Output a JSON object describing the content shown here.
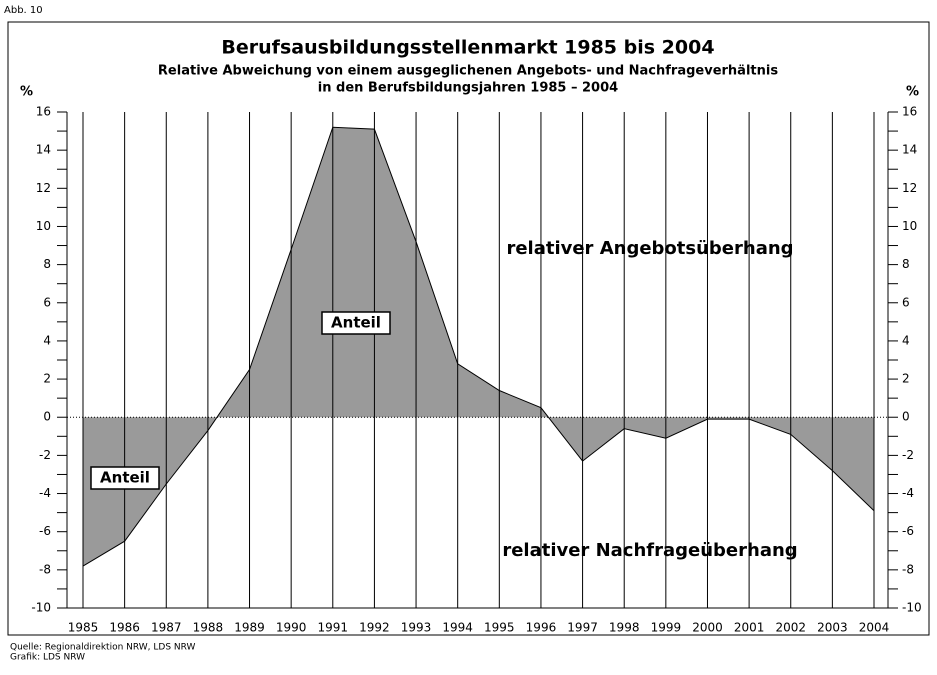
{
  "figure_label": "Abb. 10",
  "chart_data": {
    "type": "area",
    "title": "Berufsausbildungsstellenmarkt 1985 bis 2004",
    "subtitle": [
      "Relative Abweichung von einem ausgeglichenen Angebots- und Nachfrageverhältnis",
      "in den Berufsbildungsjahren 1985 – 2004"
    ],
    "y_label": "%",
    "y2_label": "%",
    "categories": [
      "1985",
      "1986",
      "1987",
      "1988",
      "1989",
      "1990",
      "1991",
      "1992",
      "1993",
      "1994",
      "1995",
      "1996",
      "1997",
      "1998",
      "1999",
      "2000",
      "2001",
      "2002",
      "2003",
      "2004"
    ],
    "values": [
      -7.8,
      -6.5,
      -3.5,
      -0.7,
      2.5,
      8.8,
      15.2,
      15.1,
      9.2,
      2.8,
      1.4,
      0.5,
      -2.3,
      -0.6,
      -1.1,
      -0.1,
      -0.1,
      -0.9,
      -2.8,
      -4.9
    ],
    "color": "#9a9a9a",
    "ylim": [
      -10,
      16
    ],
    "yticks": [
      -10,
      -8,
      -6,
      -4,
      -2,
      0,
      2,
      4,
      6,
      8,
      10,
      12,
      14,
      16
    ],
    "yticks_minor": [
      -9,
      -7,
      -5,
      -3,
      -1,
      1,
      3,
      5,
      7,
      9,
      11,
      13,
      15
    ],
    "grid": true,
    "annotations": [
      "relativer Angebotsüberhang",
      "relativer Nachfrageüberhang",
      "Anteil",
      "Anteil"
    ]
  },
  "footer": [
    "Quelle: Regionaldirektion NRW, LDS NRW",
    "Grafik: LDS NRW"
  ]
}
